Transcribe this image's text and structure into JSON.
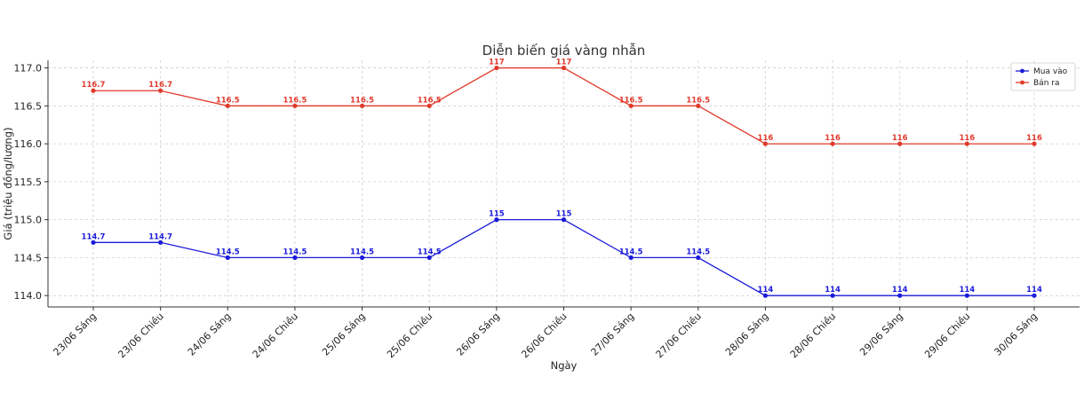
{
  "chart_data": {
    "type": "line",
    "title": "Diễn biến giá vàng nhẫn",
    "xlabel": "Ngày",
    "ylabel": "Giá (triệu đồng/lượng)",
    "ylim": [
      113.85,
      117.1
    ],
    "yticks": [
      "114.0",
      "114.5",
      "115.0",
      "115.5",
      "116.0",
      "116.5",
      "117.0"
    ],
    "categories": [
      "23/06 Sáng",
      "23/06 Chiều",
      "24/06 Sáng",
      "24/06 Chiều",
      "25/06 Sáng",
      "25/06 Chiều",
      "26/06 Sáng",
      "26/06 Chiều",
      "27/06 Sáng",
      "27/06 Chiều",
      "28/06 Sáng",
      "28/06 Chiều",
      "29/06 Sáng",
      "29/06 Chiều",
      "30/06 Sáng"
    ],
    "series": [
      {
        "name": "Mua vào",
        "color": "#1a1adb",
        "values": [
          114.7,
          114.7,
          114.5,
          114.5,
          114.5,
          114.5,
          115,
          115,
          114.5,
          114.5,
          114,
          114,
          114,
          114,
          114
        ],
        "labels": [
          "114.7",
          "114.7",
          "114.5",
          "114.5",
          "114.5",
          "114.5",
          "115",
          "115",
          "114.5",
          "114.5",
          "114",
          "114",
          "114",
          "114",
          "114"
        ]
      },
      {
        "name": "Bán ra",
        "color": "#e0392b",
        "values": [
          116.7,
          116.7,
          116.5,
          116.5,
          116.5,
          116.5,
          117,
          117,
          116.5,
          116.5,
          116,
          116,
          116,
          116,
          116
        ],
        "labels": [
          "116.7",
          "116.7",
          "116.5",
          "116.5",
          "116.5",
          "116.5",
          "117",
          "117",
          "116.5",
          "116.5",
          "116",
          "116",
          "116",
          "116",
          "116"
        ]
      }
    ],
    "grid": true,
    "legend_position": "top-right"
  }
}
